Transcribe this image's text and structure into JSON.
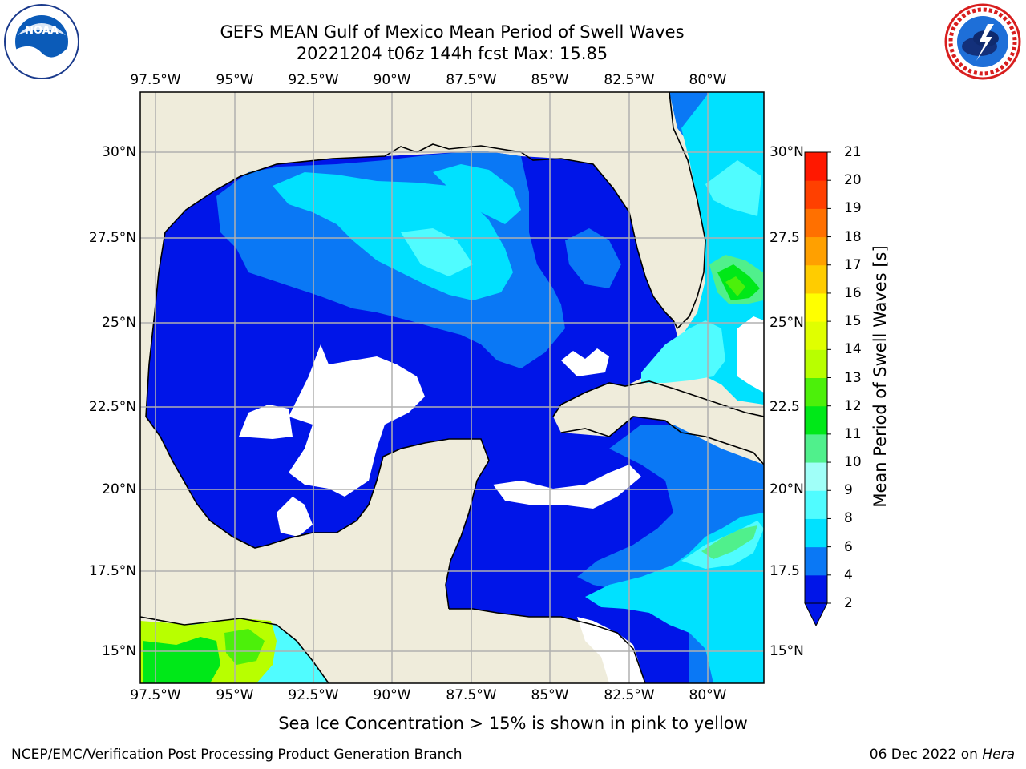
{
  "title": {
    "line1": "GEFS MEAN Gulf of Mexico Mean Period of Swell Waves",
    "line2": "20221204 t06z 144h fcst   Max: 15.85"
  },
  "map": {
    "lon_labels": [
      "97.5°W",
      "95°W",
      "92.5°W",
      "90°W",
      "87.5°W",
      "85°W",
      "82.5°W",
      "80°W"
    ],
    "lat_labels_left": [
      "30°N",
      "27.5°N",
      "25°N",
      "22.5°N",
      "20°N",
      "17.5°N",
      "15°N"
    ],
    "lat_labels_right": [
      "30°N",
      "27.5",
      "25°N",
      "22.5",
      "20°N",
      "17.5",
      "15°N"
    ]
  },
  "colorbar": {
    "title": "Mean Period of Swell Waves [s]",
    "ticks": [
      "2",
      "4",
      "6",
      "8",
      "9",
      "10",
      "11",
      "12",
      "13",
      "14",
      "15",
      "16",
      "17",
      "18",
      "19",
      "20",
      "21"
    ],
    "colors": [
      "#0015e8",
      "#0a78f5",
      "#00e1ff",
      "#50fcff",
      "#a0fff8",
      "#50f08c",
      "#00e818",
      "#4cf00a",
      "#b8ff00",
      "#e0ff00",
      "#ffff00",
      "#ffcc00",
      "#ffa000",
      "#ff7000",
      "#ff4000",
      "#ff1800"
    ]
  },
  "logos": {
    "left_text": "NOAA"
  },
  "caption": "Sea Ice Concentration > 15% is shown in pink to yellow",
  "footer": {
    "left": "NCEP/EMC/Verification Post Processing Product Generation Branch",
    "date": "06 Dec 2022 on",
    "machine": "Hera"
  }
}
